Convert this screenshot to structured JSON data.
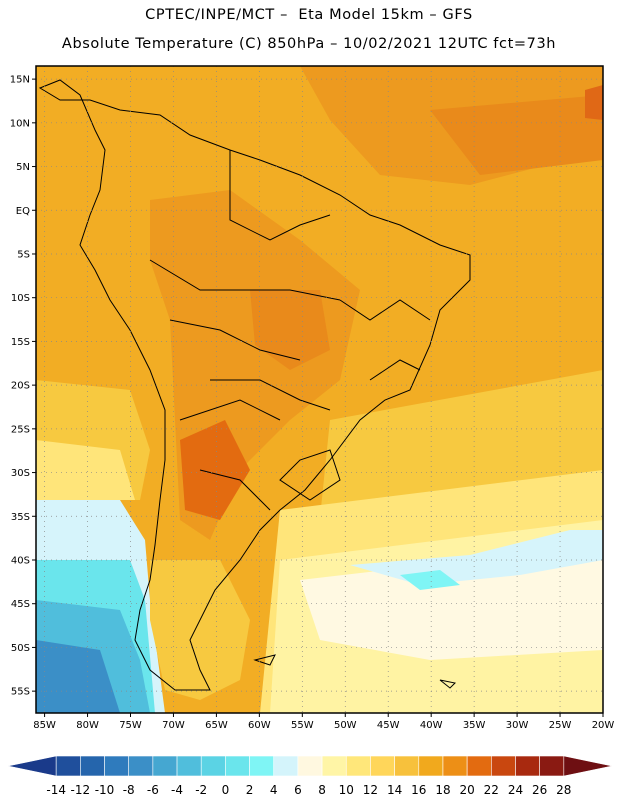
{
  "header": {
    "line1": "CPTEC/INPE/MCT –  Eta Model 15km – GFS",
    "line2": "Absolute Temperature (C) 850hPa – 10/02/2021 12UTC fct=73h"
  },
  "map": {
    "lat_ticks": [
      "15N",
      "10N",
      "5N",
      "EQ",
      "5S",
      "10S",
      "15S",
      "20S",
      "25S",
      "30S",
      "35S",
      "40S",
      "45S",
      "50S",
      "55S"
    ],
    "lon_ticks": [
      "85W",
      "80W",
      "75W",
      "70W",
      "65W",
      "60W",
      "55W",
      "50W",
      "45W",
      "40W",
      "35W",
      "30W",
      "25W",
      "20W"
    ],
    "lat_range": [
      -57.5,
      16.5
    ],
    "lon_range": [
      -86,
      -20
    ]
  },
  "colorbar": {
    "labels": [
      "-14",
      "-12",
      "-10",
      "-8",
      "-6",
      "-4",
      "-2",
      "0",
      "2",
      "4",
      "6",
      "8",
      "10",
      "12",
      "14",
      "16",
      "18",
      "20",
      "22",
      "24",
      "26",
      "28"
    ],
    "colors": [
      "#1a3a8a",
      "#1f4f9c",
      "#2565ac",
      "#2f7bbd",
      "#3b8fc7",
      "#45a7d1",
      "#50bedc",
      "#5bd3e4",
      "#6ae5ec",
      "#7ff5f5",
      "#d4f4fb",
      "#fff8e0",
      "#fff5a6",
      "#ffe77a",
      "#ffd65a",
      "#f7c13c",
      "#f1a91d",
      "#ed8f16",
      "#e36b10",
      "#c9470f",
      "#a8290f",
      "#8a1a12",
      "#6e0f12"
    ]
  },
  "colors": {
    "land_outline": "#000000",
    "grid": "#888888",
    "frame": "#000000"
  }
}
